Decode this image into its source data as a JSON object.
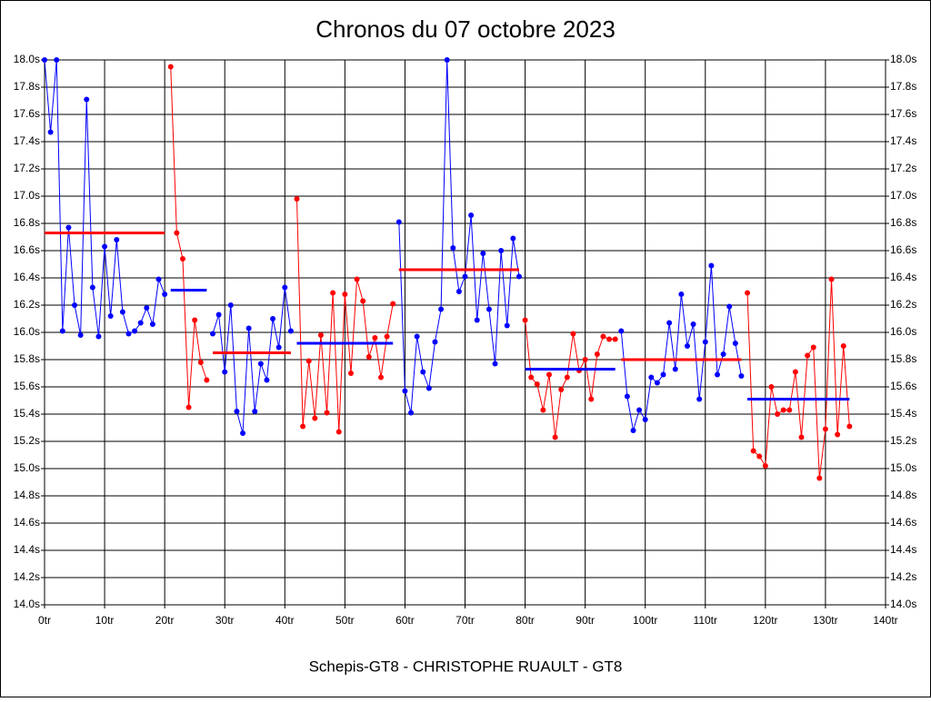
{
  "chart_data": {
    "type": "line",
    "title": "Chronos du 07 octobre 2023",
    "xlabel": "Schepis-GT8 - CHRISTOPHE RUAULT - GT8",
    "xlim": [
      0,
      140
    ],
    "ylim": [
      14.0,
      18.0
    ],
    "grid": true,
    "right_axis": true,
    "xticks": [
      {
        "value": 0,
        "label": "0tr"
      },
      {
        "value": 10,
        "label": "10tr"
      },
      {
        "value": 20,
        "label": "20tr"
      },
      {
        "value": 30,
        "label": "30tr"
      },
      {
        "value": 40,
        "label": "40tr"
      },
      {
        "value": 50,
        "label": "50tr"
      },
      {
        "value": 60,
        "label": "60tr"
      },
      {
        "value": 70,
        "label": "70tr"
      },
      {
        "value": 80,
        "label": "80tr"
      },
      {
        "value": 90,
        "label": "90tr"
      },
      {
        "value": 100,
        "label": "100tr"
      },
      {
        "value": 110,
        "label": "110tr"
      },
      {
        "value": 120,
        "label": "120tr"
      },
      {
        "value": 130,
        "label": "130tr"
      },
      {
        "value": 140,
        "label": "140tr"
      }
    ],
    "yticks": [
      {
        "value": 14.0,
        "label": "14.0s"
      },
      {
        "value": 14.2,
        "label": "14.2s"
      },
      {
        "value": 14.4,
        "label": "14.4s"
      },
      {
        "value": 14.6,
        "label": "14.6s"
      },
      {
        "value": 14.8,
        "label": "14.8s"
      },
      {
        "value": 15.0,
        "label": "15.0s"
      },
      {
        "value": 15.2,
        "label": "15.2s"
      },
      {
        "value": 15.4,
        "label": "15.4s"
      },
      {
        "value": 15.6,
        "label": "15.6s"
      },
      {
        "value": 15.8,
        "label": "15.8s"
      },
      {
        "value": 16.0,
        "label": "16.0s"
      },
      {
        "value": 16.2,
        "label": "16.2s"
      },
      {
        "value": 16.4,
        "label": "16.4s"
      },
      {
        "value": 16.6,
        "label": "16.6s"
      },
      {
        "value": 16.8,
        "label": "16.8s"
      },
      {
        "value": 17.0,
        "label": "17.0s"
      },
      {
        "value": 17.2,
        "label": "17.2s"
      },
      {
        "value": 17.4,
        "label": "17.4s"
      },
      {
        "value": 17.6,
        "label": "17.6s"
      },
      {
        "value": 17.8,
        "label": "17.8s"
      },
      {
        "value": 18.0,
        "label": "18.0s"
      }
    ],
    "series": [
      {
        "color": "#0000ff",
        "x": [
          0,
          1,
          2,
          3,
          4,
          5,
          6,
          7,
          8,
          9,
          10,
          11,
          12,
          13,
          14,
          15,
          16,
          17,
          18,
          19,
          20
        ],
        "values": [
          18.0,
          17.47,
          18.0,
          16.01,
          16.77,
          16.2,
          15.98,
          17.71,
          16.33,
          15.97,
          16.63,
          16.12,
          16.68,
          16.15,
          15.99,
          16.01,
          16.07,
          16.18,
          16.06,
          16.39,
          16.28
        ]
      },
      {
        "color": "#ff0000",
        "x": [
          21,
          22,
          23,
          24,
          25,
          26,
          27
        ],
        "values": [
          17.95,
          16.73,
          16.54,
          15.45,
          16.09,
          15.78,
          15.65
        ]
      },
      {
        "color": "#0000ff",
        "x": [
          28,
          29,
          30,
          31,
          32,
          33,
          34,
          35,
          36,
          37,
          38,
          39,
          40,
          41
        ],
        "values": [
          15.99,
          16.13,
          15.71,
          16.2,
          15.42,
          15.26,
          16.03,
          15.42,
          15.77,
          15.65,
          16.1,
          15.89,
          16.33,
          16.01
        ]
      },
      {
        "color": "#ff0000",
        "x": [
          42,
          43,
          44,
          45,
          46,
          47,
          48,
          49,
          50,
          51,
          52,
          53,
          54,
          55,
          56,
          57,
          58
        ],
        "values": [
          16.98,
          15.31,
          15.79,
          15.37,
          15.98,
          15.41,
          16.29,
          15.27,
          16.28,
          15.7,
          16.39,
          16.23,
          15.82,
          15.96,
          15.67,
          15.97,
          16.21
        ]
      },
      {
        "color": "#0000ff",
        "x": [
          59,
          60,
          61,
          62,
          63,
          64,
          65,
          66,
          67,
          68,
          69,
          70,
          71,
          72,
          73,
          74,
          75,
          76,
          77,
          78,
          79
        ],
        "values": [
          16.81,
          15.57,
          15.41,
          15.97,
          15.71,
          15.59,
          15.93,
          16.17,
          18.0,
          16.62,
          16.3,
          16.41,
          16.86,
          16.09,
          16.58,
          16.17,
          15.77,
          16.6,
          16.05,
          16.69,
          16.41
        ]
      },
      {
        "color": "#ff0000",
        "x": [
          80,
          81,
          82,
          83,
          84,
          85,
          86,
          87,
          88,
          89,
          90,
          91,
          92,
          93,
          94,
          95
        ],
        "values": [
          16.09,
          15.67,
          15.62,
          15.43,
          15.69,
          15.23,
          15.58,
          15.67,
          15.99,
          15.72,
          15.8,
          15.51,
          15.84,
          15.97,
          15.95,
          15.95
        ]
      },
      {
        "color": "#0000ff",
        "x": [
          96,
          97,
          98,
          99,
          100,
          101,
          102,
          103,
          104,
          105,
          106,
          107,
          108,
          109,
          110,
          111,
          112,
          113,
          114,
          115,
          116
        ],
        "values": [
          16.01,
          15.53,
          15.28,
          15.43,
          15.36,
          15.67,
          15.63,
          15.69,
          16.07,
          15.73,
          16.28,
          15.9,
          16.06,
          15.51,
          15.93,
          16.49,
          15.69,
          15.84,
          16.19,
          15.92,
          15.68
        ]
      },
      {
        "color": "#ff0000",
        "x": [
          117,
          118,
          119,
          120,
          121,
          122,
          123,
          124,
          125,
          126,
          127,
          128,
          129,
          130,
          131,
          132,
          133,
          134
        ],
        "values": [
          16.29,
          15.13,
          15.09,
          15.02,
          15.6,
          15.4,
          15.43,
          15.43,
          15.71,
          15.23,
          15.83,
          15.89,
          14.93,
          15.29,
          16.39,
          15.25,
          15.9,
          15.31
        ]
      }
    ],
    "averages": [
      {
        "color": "#ff0000",
        "x": [
          0,
          20
        ],
        "value": 16.73
      },
      {
        "color": "#0000ff",
        "x": [
          21,
          27
        ],
        "value": 16.31
      },
      {
        "color": "#ff0000",
        "x": [
          28,
          41
        ],
        "value": 15.85
      },
      {
        "color": "#0000ff",
        "x": [
          42,
          58
        ],
        "value": 15.92
      },
      {
        "color": "#ff0000",
        "x": [
          59,
          79
        ],
        "value": 16.46
      },
      {
        "color": "#0000ff",
        "x": [
          80,
          95
        ],
        "value": 15.73
      },
      {
        "color": "#ff0000",
        "x": [
          96,
          116
        ],
        "value": 15.8
      },
      {
        "color": "#0000ff",
        "x": [
          117,
          134
        ],
        "value": 15.51
      }
    ]
  }
}
